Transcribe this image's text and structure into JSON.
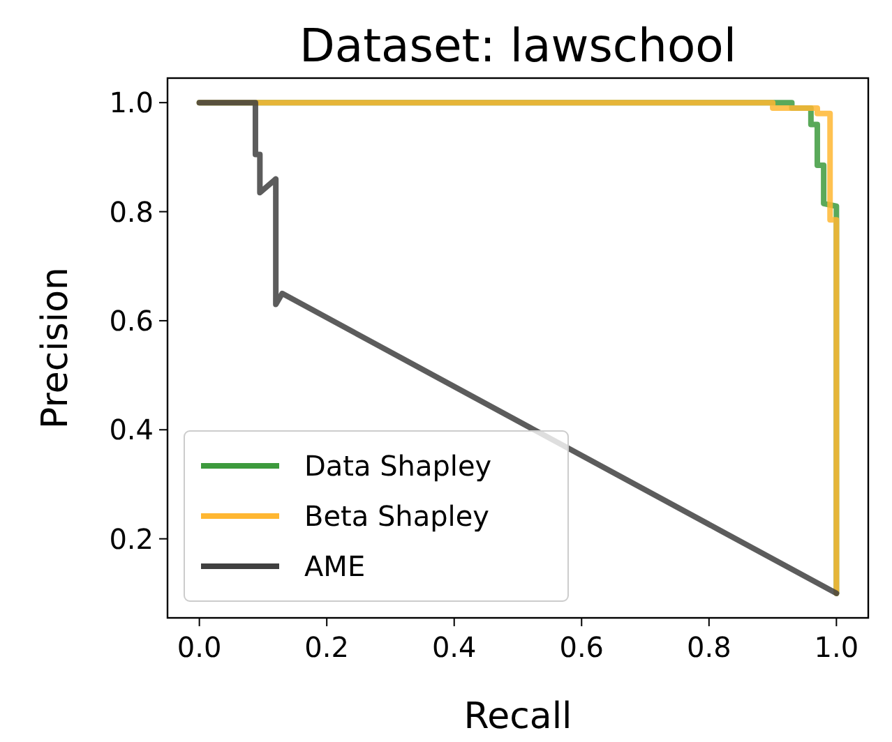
{
  "chart_data": {
    "type": "line",
    "title": "Dataset: lawschool",
    "xlabel": "Recall",
    "ylabel": "Precision",
    "xlim": [
      -0.05,
      1.05
    ],
    "ylim": [
      0.055,
      1.045
    ],
    "xticks": [
      {
        "value": 0,
        "label": "0.0"
      },
      {
        "value": 0.2,
        "label": "0.2"
      },
      {
        "value": 0.4,
        "label": "0.4"
      },
      {
        "value": 0.6,
        "label": "0.6"
      },
      {
        "value": 0.8,
        "label": "0.8"
      },
      {
        "value": 1,
        "label": "1.0"
      }
    ],
    "yticks": [
      {
        "value": 0.2,
        "label": "0.2"
      },
      {
        "value": 0.4,
        "label": "0.4"
      },
      {
        "value": 0.6,
        "label": "0.6"
      },
      {
        "value": 0.8,
        "label": "0.8"
      },
      {
        "value": 1,
        "label": "1.0"
      }
    ],
    "legend": "bottom left",
    "grid": false,
    "line_style": "solid",
    "marker": "none",
    "series": [
      {
        "name": "Data Shapley",
        "color": "#3d9a3d",
        "x": [
          0,
          0.93,
          0.93,
          0.96,
          0.96,
          0.97,
          0.97,
          0.98,
          0.98,
          1.0,
          1.0
        ],
        "values": [
          1,
          1,
          0.99,
          0.99,
          0.96,
          0.96,
          0.885,
          0.885,
          0.815,
          0.81,
          0.1
        ]
      },
      {
        "name": "Beta Shapley",
        "color": "#ffb732",
        "x": [
          0,
          0.9,
          0.9,
          0.97,
          0.97,
          0.99,
          0.99,
          1.0,
          1.0
        ],
        "values": [
          1,
          1,
          0.99,
          0.99,
          0.98,
          0.98,
          0.785,
          0.785,
          0.1
        ]
      },
      {
        "name": "AME",
        "color": "#404040",
        "x": [
          0,
          0.088,
          0.088,
          0.095,
          0.095,
          0.12,
          0.12,
          0.13,
          1.0
        ],
        "values": [
          1,
          1,
          0.905,
          0.905,
          0.835,
          0.86,
          0.63,
          0.65,
          0.1
        ]
      }
    ]
  }
}
